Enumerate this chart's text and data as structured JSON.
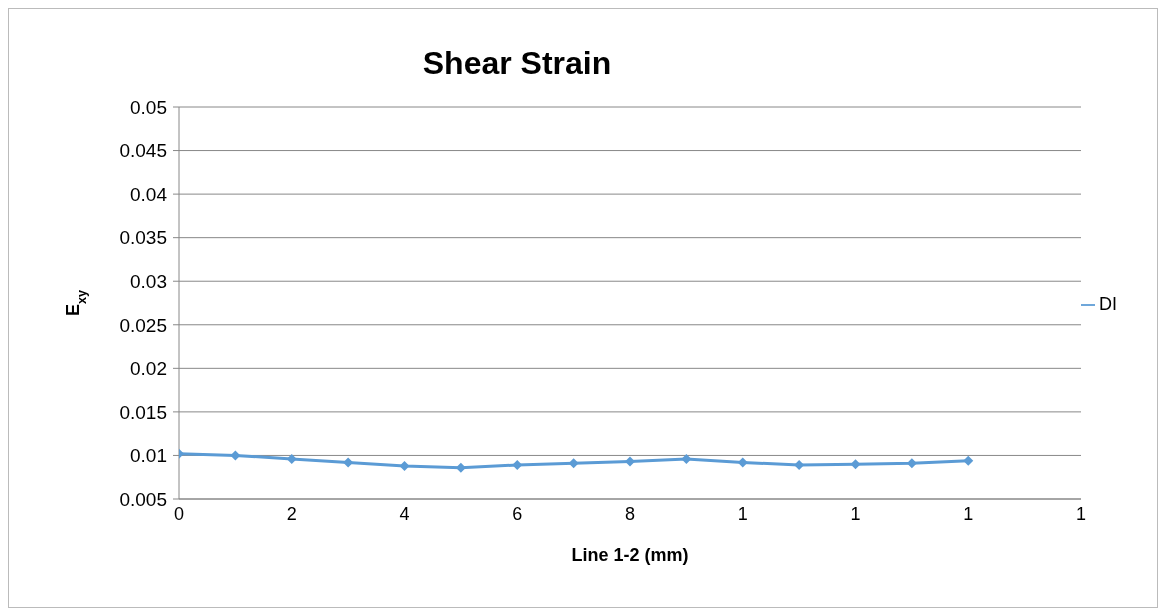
{
  "chart_data": {
    "type": "line",
    "title": "Shear Strain",
    "xlabel": "Line 1-2 (mm)",
    "ylabel": "E$_{xy}$",
    "categories": [
      "0",
      null,
      "2",
      null,
      "4",
      null,
      "6",
      null,
      "8",
      null,
      "1",
      null,
      "1",
      null,
      "1",
      null,
      "1"
    ],
    "series": [
      {
        "name": "DI",
        "color": "#5b9bd5",
        "values": [
          0.0102,
          0.01,
          0.0096,
          0.0092,
          0.0088,
          0.0086,
          0.0089,
          0.0091,
          0.0093,
          0.0096,
          0.0092,
          0.0089,
          0.009,
          0.0091,
          0.0094,
          null,
          null
        ]
      }
    ],
    "ylim": [
      0.005,
      0.05
    ],
    "yticks": [
      0.005,
      0.01,
      0.015,
      0.02,
      0.025,
      0.03,
      0.035,
      0.04,
      0.045,
      0.05
    ],
    "grid": "y",
    "legend": "right",
    "marker": "diamond",
    "line_style": "solid"
  }
}
